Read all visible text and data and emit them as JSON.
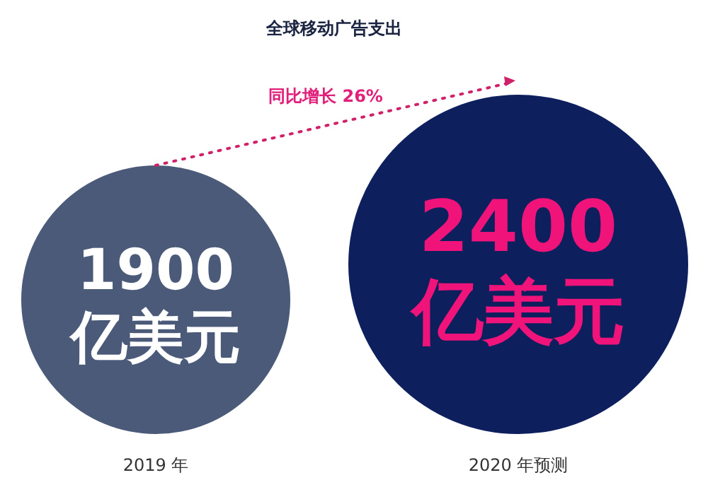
{
  "chart_data": {
    "type": "other",
    "title": "全球移动广告支出",
    "categories": [
      "2019 年",
      "2020 年预测"
    ],
    "values": [
      1900,
      2400
    ],
    "value_labels": [
      "1900 亿美元",
      "2400 亿美元"
    ],
    "colors": [
      "#4b5a78",
      "#0e1f5e"
    ],
    "annotations": [
      "同比增长 26%"
    ]
  }
}
